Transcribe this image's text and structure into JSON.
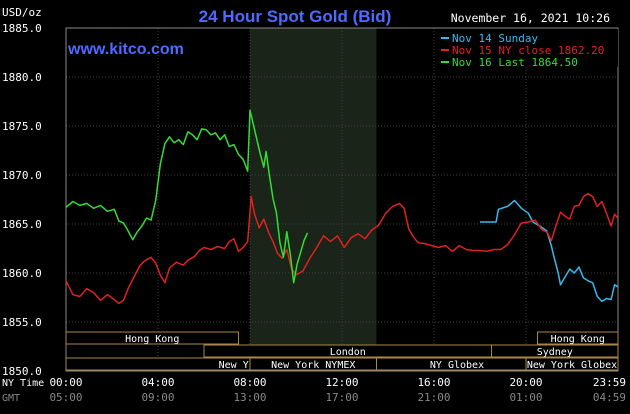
{
  "chart_data": {
    "type": "line",
    "title": "24 Hour Spot Gold (Bid)",
    "unit_label": "USD/oz",
    "date_label": "November 16, 2021 10:26",
    "brand": "www.kitco.com",
    "colors": {
      "background": "#000000",
      "grid": "#3f3f3f",
      "axis_text": "#ffffff",
      "title": "#4d6bff",
      "brand": "#4d6bff",
      "nymex_highlight": "#1a2418"
    },
    "ylim": [
      1850.0,
      1885.0
    ],
    "y_ticks": [
      "1885.0",
      "1880.0",
      "1875.0",
      "1870.0",
      "1865.0",
      "1860.0",
      "1855.0",
      "1850.0"
    ],
    "xlim": [
      0,
      24
    ],
    "x_ticks_ny": [
      "00:00",
      "04:00",
      "08:00",
      "12:00",
      "16:00",
      "20:00",
      "23:59"
    ],
    "x_ticks_gmt": [
      "05:00",
      "09:00",
      "13:00",
      "17:00",
      "21:00",
      "01:00",
      "04:59"
    ],
    "x_axis_ny_label": "NY Time",
    "x_axis_gmt_label": "GMT",
    "nymex_window": [
      8.0,
      13.5
    ],
    "sessions": [
      {
        "name": "Hong Kong",
        "start": 0.0,
        "end": 7.5
      },
      {
        "name": "London",
        "start": 6.0,
        "end": 18.5
      },
      {
        "name": "New York Globex",
        "start": 0.0,
        "end": 17.2
      },
      {
        "name": "New York NYMEX",
        "start": 8.0,
        "end": 13.5
      },
      {
        "name": "NY Globex",
        "start": 13.5,
        "end": 20.5
      },
      {
        "name": "Hong Kong",
        "start": 20.5,
        "end": 24.0
      },
      {
        "name": "Sydney",
        "start": 18.5,
        "end": 24.0
      },
      {
        "name": "New York Globex",
        "start": 20.0,
        "end": 24.0
      }
    ],
    "series": [
      {
        "name": "Nov 14 Sunday",
        "color": "#33bbee",
        "points": [
          [
            18.0,
            1865.2
          ],
          [
            18.7,
            1865.2
          ],
          [
            18.8,
            1866.5
          ],
          [
            19.2,
            1866.8
          ],
          [
            19.5,
            1867.4
          ],
          [
            19.8,
            1866.6
          ],
          [
            20.1,
            1866.1
          ],
          [
            20.3,
            1865.2
          ],
          [
            20.6,
            1864.8
          ],
          [
            20.9,
            1864.3
          ],
          [
            21.1,
            1862.8
          ],
          [
            21.2,
            1861.8
          ],
          [
            21.4,
            1860.0
          ],
          [
            21.5,
            1858.8
          ],
          [
            21.7,
            1859.6
          ],
          [
            21.9,
            1860.4
          ],
          [
            22.1,
            1860.0
          ],
          [
            22.3,
            1860.6
          ],
          [
            22.5,
            1859.5
          ],
          [
            22.7,
            1859.2
          ],
          [
            22.9,
            1859.0
          ],
          [
            23.1,
            1857.6
          ],
          [
            23.3,
            1857.1
          ],
          [
            23.5,
            1857.4
          ],
          [
            23.7,
            1857.3
          ],
          [
            23.85,
            1858.8
          ],
          [
            23.99,
            1858.6
          ]
        ]
      },
      {
        "name": "Nov 15 NY close 1862.20",
        "color": "#dd2222",
        "points": [
          [
            0.0,
            1859.2
          ],
          [
            0.3,
            1857.8
          ],
          [
            0.6,
            1857.6
          ],
          [
            0.9,
            1858.4
          ],
          [
            1.2,
            1858.0
          ],
          [
            1.5,
            1857.2
          ],
          [
            1.8,
            1857.8
          ],
          [
            2.1,
            1857.3
          ],
          [
            2.3,
            1856.9
          ],
          [
            2.5,
            1857.2
          ],
          [
            2.7,
            1858.4
          ],
          [
            3.0,
            1859.8
          ],
          [
            3.2,
            1860.7
          ],
          [
            3.4,
            1861.2
          ],
          [
            3.7,
            1861.6
          ],
          [
            3.9,
            1861.0
          ],
          [
            4.1,
            1859.8
          ],
          [
            4.3,
            1859.0
          ],
          [
            4.5,
            1860.5
          ],
          [
            4.8,
            1861.1
          ],
          [
            5.1,
            1860.8
          ],
          [
            5.3,
            1861.3
          ],
          [
            5.6,
            1861.7
          ],
          [
            5.8,
            1862.3
          ],
          [
            6.0,
            1862.6
          ],
          [
            6.3,
            1862.4
          ],
          [
            6.6,
            1862.7
          ],
          [
            6.9,
            1862.5
          ],
          [
            7.1,
            1863.2
          ],
          [
            7.3,
            1863.5
          ],
          [
            7.5,
            1862.2
          ],
          [
            7.7,
            1862.6
          ],
          [
            7.9,
            1863.2
          ],
          [
            8.05,
            1867.8
          ],
          [
            8.2,
            1866.0
          ],
          [
            8.4,
            1864.6
          ],
          [
            8.6,
            1865.5
          ],
          [
            8.8,
            1864.2
          ],
          [
            9.0,
            1863.2
          ],
          [
            9.2,
            1862.0
          ],
          [
            9.4,
            1861.5
          ],
          [
            9.6,
            1862.4
          ],
          [
            9.8,
            1860.5
          ],
          [
            10.0,
            1859.8
          ],
          [
            10.3,
            1860.2
          ],
          [
            10.6,
            1861.5
          ],
          [
            10.9,
            1862.6
          ],
          [
            11.2,
            1863.8
          ],
          [
            11.5,
            1863.2
          ],
          [
            11.8,
            1863.8
          ],
          [
            12.1,
            1862.6
          ],
          [
            12.4,
            1863.6
          ],
          [
            12.7,
            1864.0
          ],
          [
            13.0,
            1863.5
          ],
          [
            13.3,
            1864.4
          ],
          [
            13.6,
            1864.9
          ],
          [
            13.9,
            1866.1
          ],
          [
            14.2,
            1866.8
          ],
          [
            14.5,
            1867.1
          ],
          [
            14.7,
            1866.6
          ],
          [
            14.9,
            1864.5
          ],
          [
            15.1,
            1863.7
          ],
          [
            15.3,
            1863.1
          ],
          [
            15.6,
            1863.0
          ],
          [
            15.9,
            1862.8
          ],
          [
            16.2,
            1862.6
          ],
          [
            16.5,
            1862.8
          ],
          [
            16.8,
            1862.2
          ],
          [
            17.1,
            1862.8
          ],
          [
            17.4,
            1862.4
          ],
          [
            17.7,
            1862.3
          ],
          [
            18.0,
            1862.3
          ],
          [
            18.3,
            1862.2
          ],
          [
            18.6,
            1862.4
          ],
          [
            18.9,
            1862.4
          ],
          [
            19.2,
            1862.9
          ],
          [
            19.5,
            1863.9
          ],
          [
            19.8,
            1865.1
          ],
          [
            20.1,
            1865.2
          ],
          [
            20.4,
            1865.4
          ],
          [
            20.7,
            1864.4
          ],
          [
            20.9,
            1864.2
          ],
          [
            21.1,
            1863.3
          ],
          [
            21.3,
            1864.8
          ],
          [
            21.5,
            1866.2
          ],
          [
            21.7,
            1865.8
          ],
          [
            21.9,
            1865.5
          ],
          [
            22.1,
            1866.8
          ],
          [
            22.3,
            1866.9
          ],
          [
            22.5,
            1867.8
          ],
          [
            22.7,
            1868.1
          ],
          [
            22.9,
            1867.8
          ],
          [
            23.1,
            1866.8
          ],
          [
            23.3,
            1867.3
          ],
          [
            23.5,
            1866.1
          ],
          [
            23.7,
            1864.8
          ],
          [
            23.85,
            1866.0
          ],
          [
            23.99,
            1865.6
          ]
        ]
      },
      {
        "name": "Nov 16 Last 1864.50",
        "color": "#33dd33",
        "points": [
          [
            0.0,
            1866.7
          ],
          [
            0.3,
            1867.3
          ],
          [
            0.6,
            1866.9
          ],
          [
            0.9,
            1867.1
          ],
          [
            1.2,
            1866.6
          ],
          [
            1.5,
            1866.9
          ],
          [
            1.8,
            1866.3
          ],
          [
            2.1,
            1866.5
          ],
          [
            2.3,
            1865.3
          ],
          [
            2.5,
            1865.1
          ],
          [
            2.7,
            1864.3
          ],
          [
            2.9,
            1863.4
          ],
          [
            3.1,
            1864.2
          ],
          [
            3.3,
            1864.8
          ],
          [
            3.5,
            1865.6
          ],
          [
            3.7,
            1865.4
          ],
          [
            3.9,
            1867.4
          ],
          [
            4.1,
            1871.1
          ],
          [
            4.3,
            1873.2
          ],
          [
            4.5,
            1873.9
          ],
          [
            4.7,
            1873.3
          ],
          [
            4.9,
            1873.6
          ],
          [
            5.1,
            1873.1
          ],
          [
            5.3,
            1874.4
          ],
          [
            5.5,
            1874.1
          ],
          [
            5.7,
            1873.6
          ],
          [
            5.9,
            1874.7
          ],
          [
            6.1,
            1874.6
          ],
          [
            6.3,
            1874.1
          ],
          [
            6.5,
            1874.3
          ],
          [
            6.7,
            1873.6
          ],
          [
            6.9,
            1874.1
          ],
          [
            7.1,
            1872.9
          ],
          [
            7.3,
            1873.1
          ],
          [
            7.5,
            1872.1
          ],
          [
            7.7,
            1871.6
          ],
          [
            7.9,
            1870.4
          ],
          [
            8.0,
            1876.6
          ],
          [
            8.15,
            1875.1
          ],
          [
            8.3,
            1873.6
          ],
          [
            8.45,
            1872.1
          ],
          [
            8.6,
            1870.8
          ],
          [
            8.7,
            1872.4
          ],
          [
            8.85,
            1869.9
          ],
          [
            9.0,
            1867.6
          ],
          [
            9.15,
            1866.1
          ],
          [
            9.3,
            1863.1
          ],
          [
            9.45,
            1861.6
          ],
          [
            9.6,
            1864.2
          ],
          [
            9.75,
            1861.9
          ],
          [
            9.9,
            1859.0
          ],
          [
            10.05,
            1860.9
          ],
          [
            10.2,
            1862.1
          ],
          [
            10.35,
            1863.3
          ],
          [
            10.5,
            1864.1
          ]
        ]
      }
    ]
  }
}
